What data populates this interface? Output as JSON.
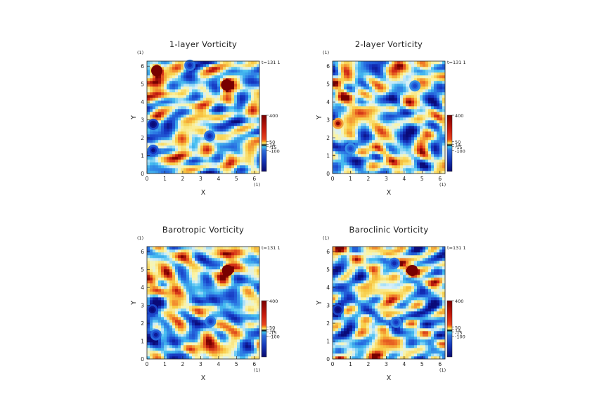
{
  "chart_data": [
    {
      "type": "heatmap",
      "title": "1-layer Vorticity",
      "xlabel": "X",
      "ylabel": "Y",
      "unit_label": "(1)",
      "time_label": "t=131 1",
      "xlim": [
        0,
        6.283
      ],
      "ylim": [
        0,
        6.283
      ],
      "xticks": [
        "0",
        "1",
        "2",
        "3",
        "4",
        "5",
        "6"
      ],
      "yticks": [
        "0",
        "1",
        "2",
        "3",
        "4",
        "5",
        "6"
      ],
      "colorbar": {
        "ticks": [
          "400",
          "50",
          "14",
          "-15",
          "-100"
        ]
      },
      "features": [
        {
          "kind": "cyclone",
          "x": 0.35,
          "y": 2.75,
          "value": -150
        },
        {
          "kind": "anticyclone",
          "x": 4.45,
          "y": 4.95,
          "value": 300
        },
        {
          "kind": "cyclone",
          "x": 0.35,
          "y": 1.3,
          "value": -120
        },
        {
          "kind": "anticyclone",
          "x": 0.55,
          "y": 5.75,
          "value": 250
        },
        {
          "kind": "cyclone",
          "x": 2.4,
          "y": 6.05,
          "value": -100
        },
        {
          "kind": "cyclone",
          "x": 3.5,
          "y": 2.1,
          "value": -100
        }
      ]
    },
    {
      "type": "heatmap",
      "title": "2-layer Vorticity",
      "xlabel": "X",
      "ylabel": "Y",
      "unit_label": "(1)",
      "time_label": "t=131 1",
      "xlim": [
        0,
        6.283
      ],
      "ylim": [
        0,
        6.283
      ],
      "xticks": [
        "0",
        "1",
        "2",
        "3",
        "4",
        "5",
        "6"
      ],
      "yticks": [
        "0",
        "1",
        "2",
        "3",
        "4",
        "5",
        "6"
      ],
      "colorbar": {
        "ticks": [
          "400",
          "50",
          "14",
          "-15",
          "-100"
        ]
      },
      "features": [
        {
          "kind": "cyclone",
          "x": 4.6,
          "y": 4.9,
          "value": -80
        },
        {
          "kind": "anticyclone",
          "x": 0.3,
          "y": 2.8,
          "value": 120
        },
        {
          "kind": "cyclone",
          "x": 1.0,
          "y": 1.4,
          "value": -80
        }
      ]
    },
    {
      "type": "heatmap",
      "title": "Barotropic Vorticity",
      "xlabel": "X",
      "ylabel": "Y",
      "unit_label": "(1)",
      "time_label": "t=131 1",
      "xlim": [
        0,
        6.283
      ],
      "ylim": [
        0,
        6.283
      ],
      "xticks": [
        "0",
        "1",
        "2",
        "3",
        "4",
        "5",
        "6"
      ],
      "yticks": [
        "0",
        "1",
        "2",
        "3",
        "4",
        "5",
        "6"
      ],
      "colorbar": {
        "ticks": [
          "400",
          "50",
          "14",
          "-15",
          "-100"
        ]
      },
      "features": [
        {
          "kind": "cyclone",
          "x": 0.3,
          "y": 2.75,
          "value": -150
        },
        {
          "kind": "anticyclone",
          "x": 4.5,
          "y": 4.95,
          "value": 300
        },
        {
          "kind": "cyclone",
          "x": 0.5,
          "y": 1.35,
          "value": -110
        },
        {
          "kind": "cyclone",
          "x": 3.55,
          "y": 2.1,
          "value": -90
        }
      ]
    },
    {
      "type": "heatmap",
      "title": "Baroclinic Vorticity",
      "xlabel": "X",
      "ylabel": "Y",
      "unit_label": "(1)",
      "time_label": "t=131 1",
      "xlim": [
        0,
        6.283
      ],
      "ylim": [
        0,
        6.283
      ],
      "xticks": [
        "0",
        "1",
        "2",
        "3",
        "4",
        "5",
        "6"
      ],
      "yticks": [
        "0",
        "1",
        "2",
        "3",
        "4",
        "5",
        "6"
      ],
      "colorbar": {
        "ticks": [
          "400",
          "50",
          "14",
          "-15",
          "-100"
        ]
      },
      "features": [
        {
          "kind": "cyclone",
          "x": 0.3,
          "y": 2.75,
          "value": -150
        },
        {
          "kind": "anticyclone",
          "x": 4.45,
          "y": 4.95,
          "value": 300
        },
        {
          "kind": "cyclone",
          "x": 3.45,
          "y": 5.35,
          "value": -100
        },
        {
          "kind": "cyclone",
          "x": 3.55,
          "y": 2.05,
          "value": -90
        }
      ]
    }
  ]
}
